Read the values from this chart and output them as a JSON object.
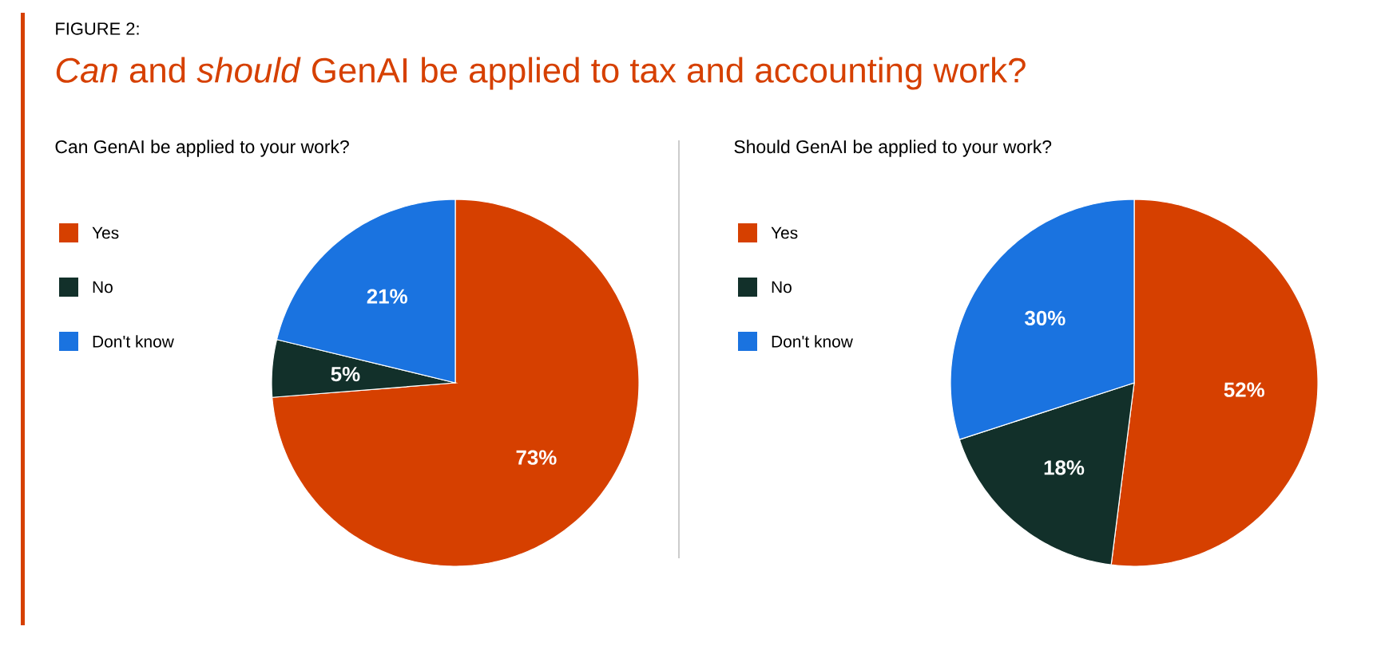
{
  "chart_data": [
    {
      "type": "pie",
      "title": "Can GenAI be applied to your work?",
      "categories": [
        "Yes",
        "No",
        "Don't know"
      ],
      "values": [
        73,
        5,
        21
      ],
      "value_labels": [
        "73%",
        "5%",
        "21%"
      ],
      "colors": [
        "#d64000",
        "#12302a",
        "#1a73e0"
      ],
      "legend": "left",
      "annotations": [
        "FIGURE 2:",
        "*Can* and *should* GenAI be applied to tax and accounting work?"
      ]
    },
    {
      "type": "pie",
      "title": "Should GenAI be applied to your work?",
      "categories": [
        "Yes",
        "No",
        "Don't know"
      ],
      "values": [
        52,
        18,
        30
      ],
      "value_labels": [
        "52%",
        "18%",
        "30%"
      ],
      "colors": [
        "#d64000",
        "#12302a",
        "#1a73e0"
      ],
      "legend": "left"
    }
  ]
}
